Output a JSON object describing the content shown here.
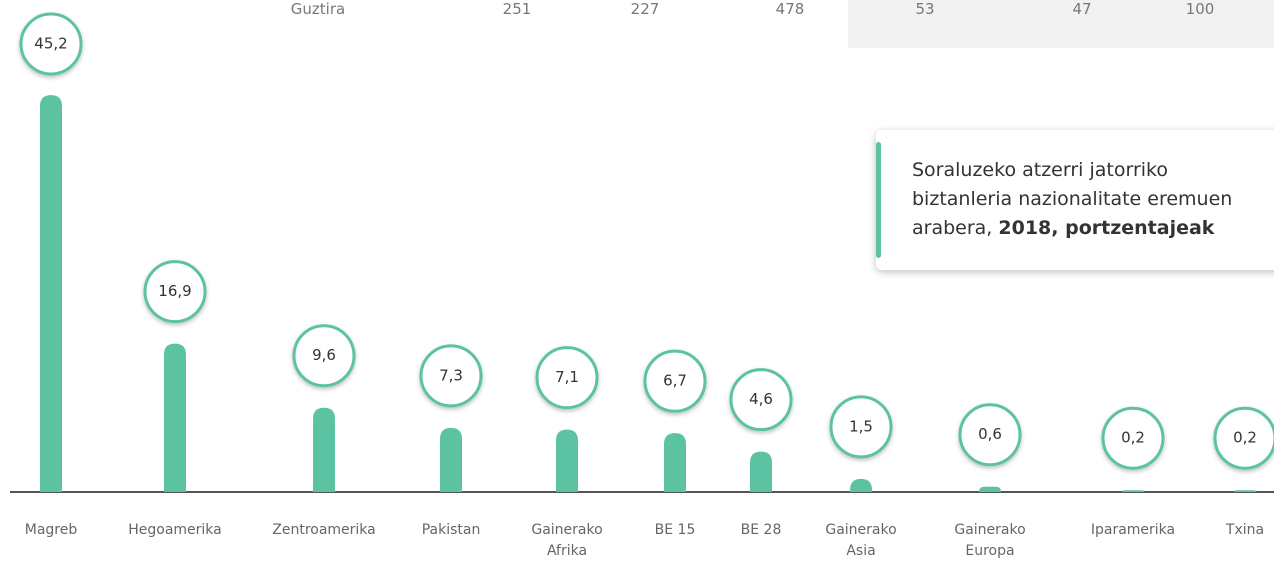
{
  "table_fragment": {
    "label": "Guztira",
    "values": [
      "251",
      "227",
      "478",
      "53",
      "47",
      "100"
    ]
  },
  "chart_data": {
    "type": "bar",
    "title": "Soraluzeko atzerri jatorriko biztanleria nazionalitate eremuen arabera,",
    "title_bold": "2018, portzentajeak",
    "categories": [
      "Magreb",
      "Hegoamerika",
      "Zentroamerika",
      "Pakistan",
      "Gainerako Afrika",
      "BE 15",
      "BE 28",
      "Gainerako Asia",
      "Gainerako Europa",
      "Iparamerika",
      "Txina"
    ],
    "values": [
      45.2,
      16.9,
      9.6,
      7.3,
      7.1,
      6.7,
      4.6,
      1.5,
      0.6,
      0.2,
      0.2
    ],
    "value_labels": [
      "45,2",
      "16,9",
      "9,6",
      "7,3",
      "7,1",
      "6,7",
      "4,6",
      "1,5",
      "0,6",
      "0,2",
      "0,2"
    ],
    "color": "#5cc3a2"
  }
}
